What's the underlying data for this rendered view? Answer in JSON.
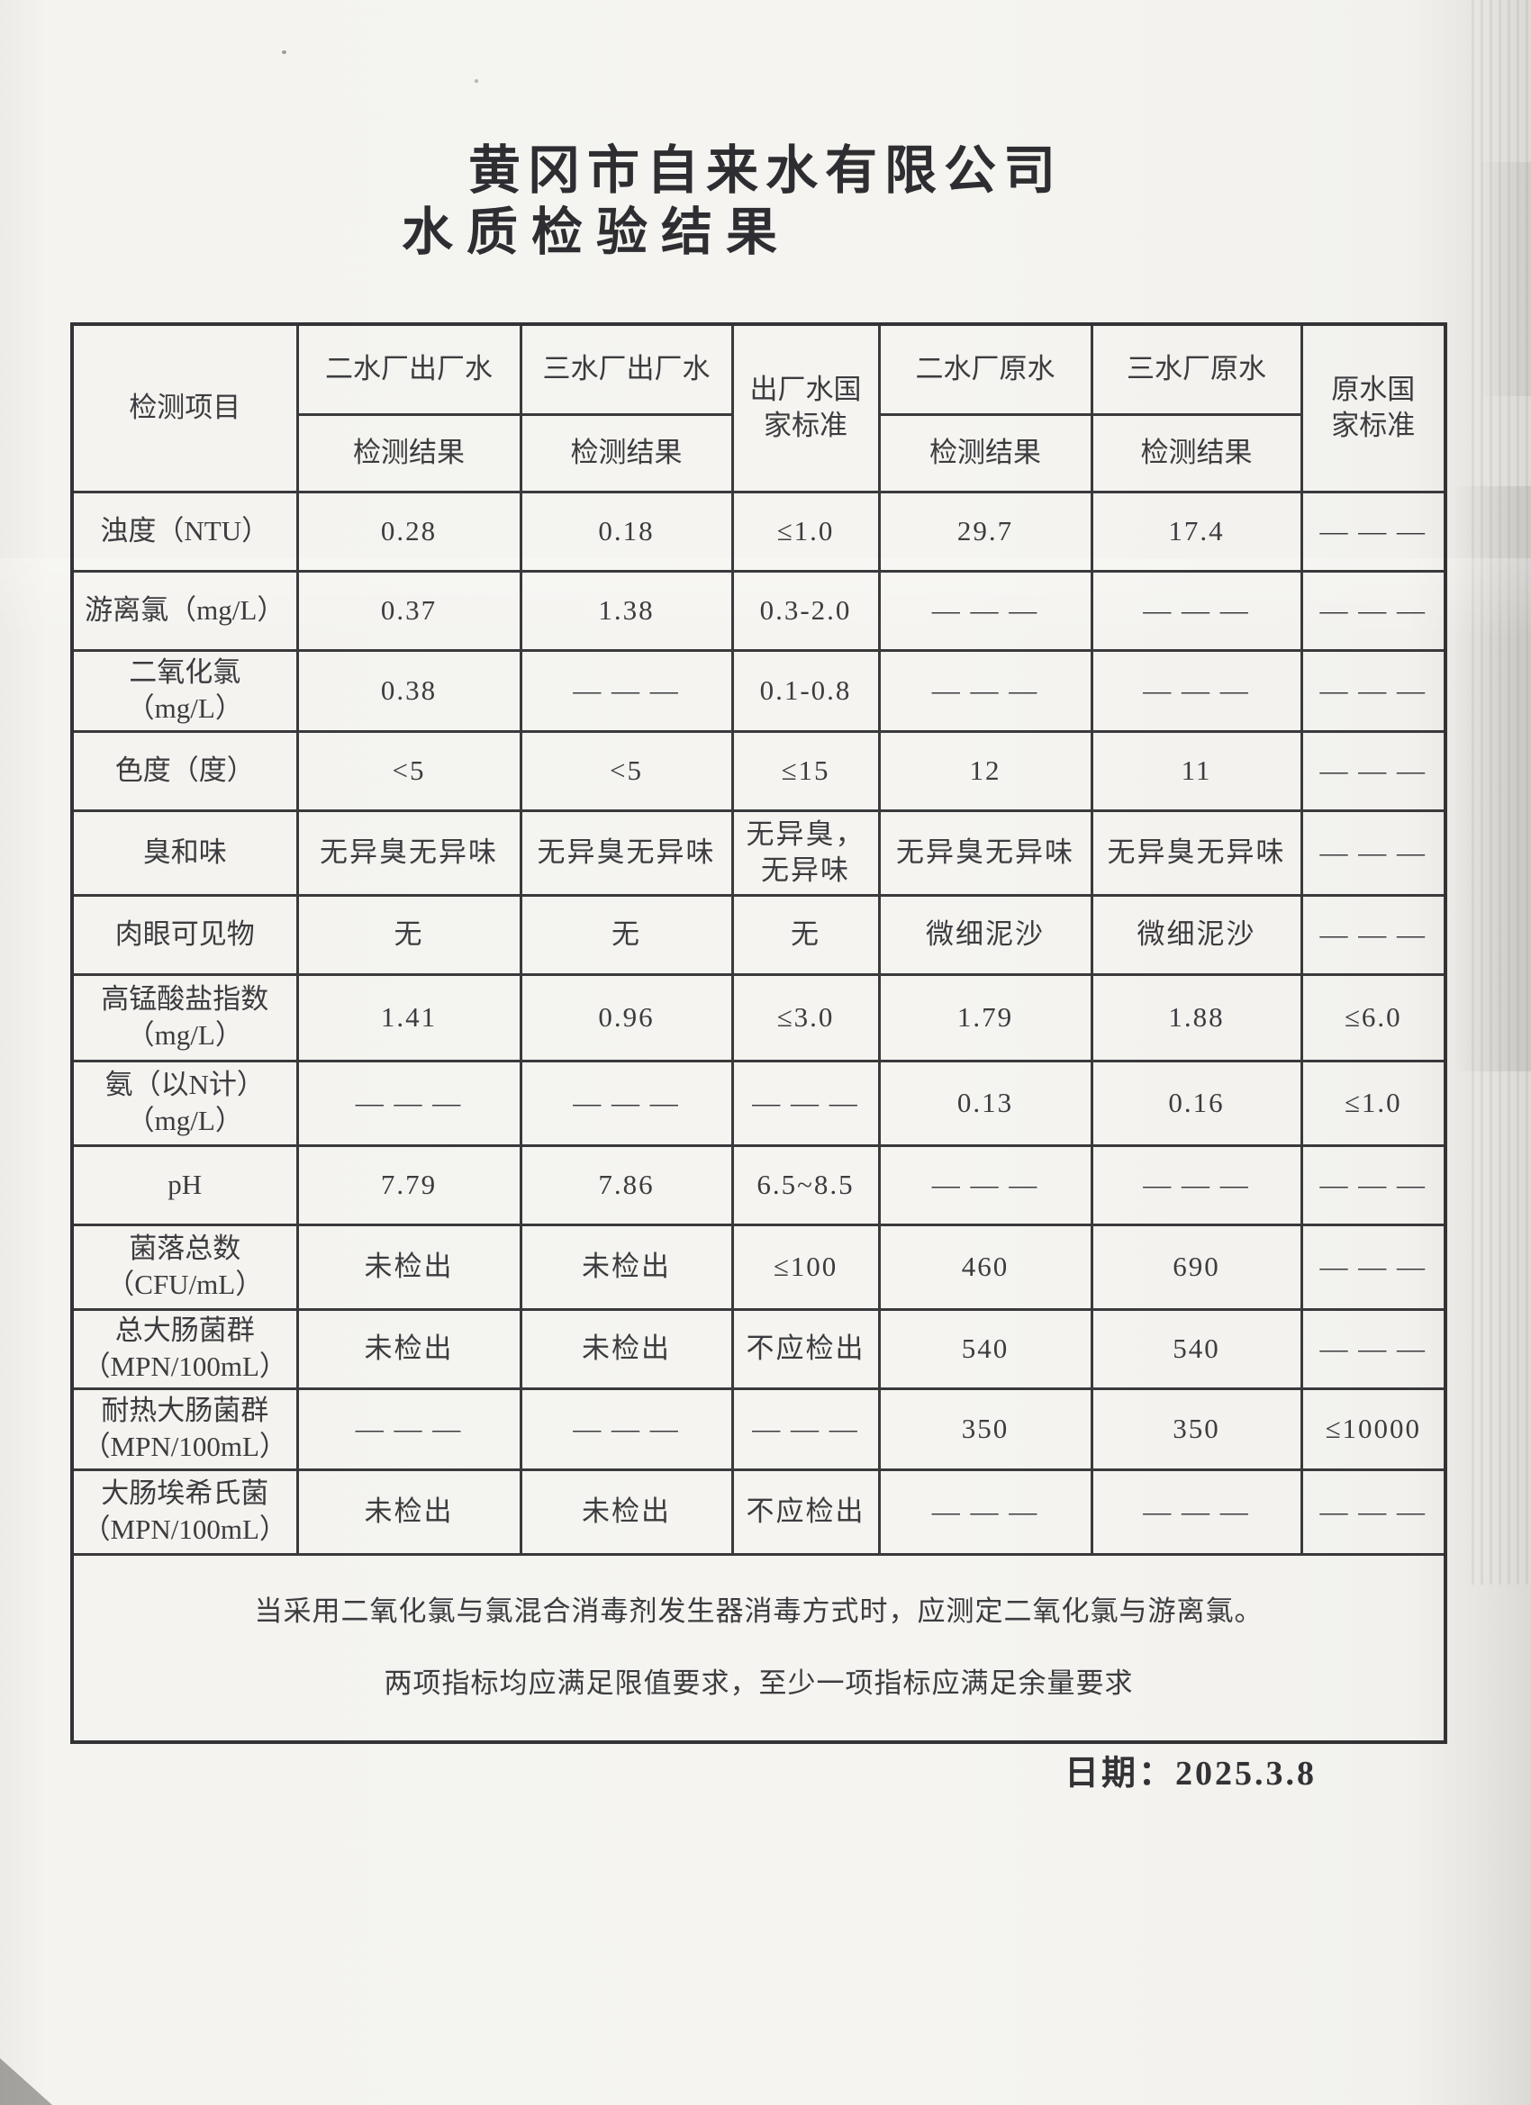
{
  "page": {
    "title_line1": "黄冈市自来水有限公司",
    "title_line2": "水质检验结果",
    "date": "日期：2025.3.8"
  },
  "table": {
    "header": {
      "item_col": "检测项目",
      "factory2_out": "二水厂出厂水",
      "factory3_out": "三水厂出厂水",
      "out_standard": "出厂水国\n家标准",
      "factory2_raw": "二水厂原水",
      "factory3_raw": "三水厂原水",
      "raw_standard": "原水国\n家标准",
      "result_label": "检测结果"
    },
    "rows": [
      {
        "item": "浊度（NTU）",
        "values": [
          "0.28",
          "0.18",
          "≤1.0",
          "29.7",
          "17.4",
          "— — —"
        ]
      },
      {
        "item": "游离氯（mg/L）",
        "values": [
          "0.37",
          "1.38",
          "0.3-2.0",
          "— — —",
          "— — —",
          "— — —"
        ]
      },
      {
        "item": "二氧化氯\n（mg/L）",
        "values": [
          "0.38",
          "— — —",
          "0.1-0.8",
          "— — —",
          "— — —",
          "— — —"
        ]
      },
      {
        "item": "色度（度）",
        "values": [
          "<5",
          "<5",
          "≤15",
          "12",
          "11",
          "— — —"
        ]
      },
      {
        "item": "臭和味",
        "values": [
          "无异臭无异味",
          "无异臭无异味",
          "无异臭，\n无异味",
          "无异臭无异味",
          "无异臭无异味",
          "— — —"
        ]
      },
      {
        "item": "肉眼可见物",
        "values": [
          "无",
          "无",
          "无",
          "微细泥沙",
          "微细泥沙",
          "— — —"
        ]
      },
      {
        "item": "高锰酸盐指数\n（mg/L）",
        "values": [
          "1.41",
          "0.96",
          "≤3.0",
          "1.79",
          "1.88",
          "≤6.0"
        ]
      },
      {
        "item": "氨（以N计）\n（mg/L）",
        "values": [
          "— — —",
          "— — —",
          "— — —",
          "0.13",
          "0.16",
          "≤1.0"
        ]
      },
      {
        "item": "pH",
        "values": [
          "7.79",
          "7.86",
          "6.5~8.5",
          "— — —",
          "— — —",
          "— — —"
        ]
      },
      {
        "item": "菌落总数\n（CFU/mL）",
        "values": [
          "未检出",
          "未检出",
          "≤100",
          "460",
          "690",
          "— — —"
        ]
      },
      {
        "item": "总大肠菌群\n（MPN/100mL）",
        "values": [
          "未检出",
          "未检出",
          "不应检出",
          "540",
          "540",
          "— — —"
        ]
      },
      {
        "item": "耐热大肠菌群\n（MPN/100mL）",
        "values": [
          "— — —",
          "— — —",
          "— — —",
          "350",
          "350",
          "≤10000"
        ]
      },
      {
        "item": "大肠埃希氏菌\n（MPN/100mL）",
        "values": [
          "未检出",
          "未检出",
          "不应检出",
          "— — —",
          "— — —",
          "— — —"
        ]
      }
    ],
    "note_line1": "当采用二氧化氯与氯混合消毒剂发生器消毒方式时，应测定二氧化氯与游离氯。",
    "note_line2": "两项指标均应满足限值要求，至少一项指标应满足余量要求"
  }
}
